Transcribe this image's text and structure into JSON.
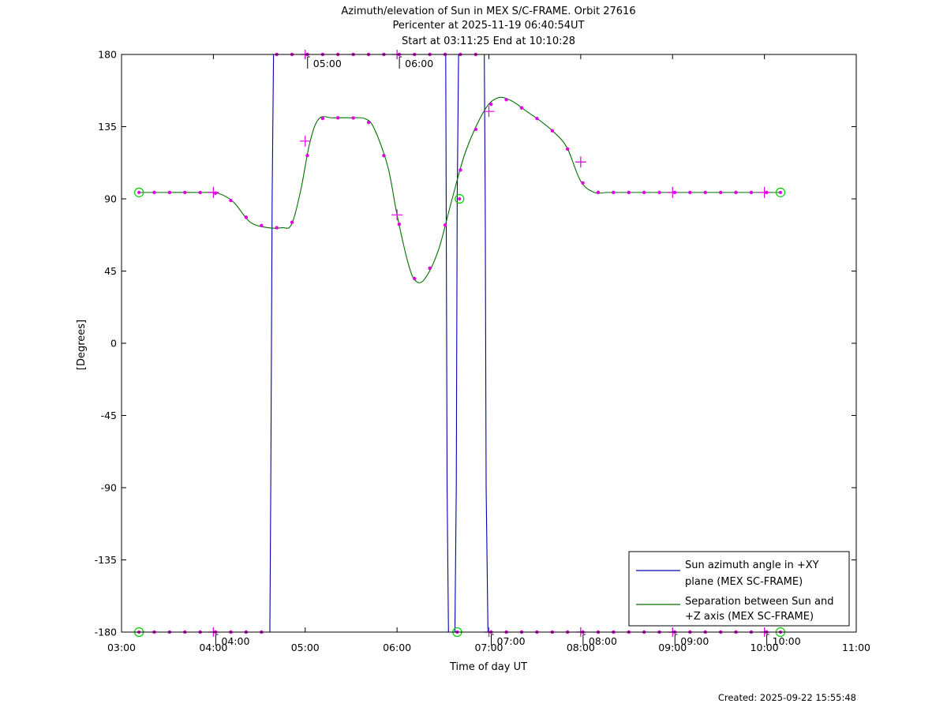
{
  "title_lines": [
    "Azimuth/elevation of Sun in MEX S/C-FRAME.  Orbit 27616",
    "Pericenter at 2025-11-19 06:40:54UT",
    "Start at 03:11:25 End at 10:10:28"
  ],
  "created": "Created: 2025-09-22 15:55:48",
  "colors": {
    "azimuth": "#0000b0",
    "separation": "#007000",
    "marker": "#e000e0",
    "endpoint": "#00cc00"
  },
  "chart_data": {
    "type": "line",
    "xlabel": "Time of day UT",
    "ylabel": "[Degrees]",
    "xlim": [
      3,
      11
    ],
    "ylim": [
      -180,
      180
    ],
    "x_ticks": [
      3,
      4,
      5,
      6,
      7,
      8,
      9,
      10,
      11
    ],
    "x_tick_labels": [
      "03:00",
      "04:00",
      "05:00",
      "06:00",
      "07:00",
      "08:00",
      "09:00",
      "10:00",
      "11:00"
    ],
    "y_ticks": [
      180,
      135,
      90,
      45,
      0,
      -45,
      -90,
      -135,
      -180
    ],
    "y_tick_labels": [
      "180",
      "135",
      "90",
      "45",
      "0",
      "-45",
      "-90",
      "-135",
      "-180"
    ],
    "grid": false,
    "legend_position": "bottom-right",
    "series": [
      {
        "name": "Sun azimuth angle in +XY plane (MEX SC-FRAME)",
        "legend_lines": [
          "Sun azimuth angle in +XY",
          "plane (MEX SC-FRAME)"
        ],
        "color": "#0000b0",
        "x": [
          3.19,
          4.615,
          4.625,
          4.64,
          4.655,
          6.53,
          6.535,
          6.545,
          6.56,
          6.63,
          6.645,
          6.655,
          6.67,
          6.95,
          6.96,
          6.97,
          6.99,
          10.175
        ],
        "y": [
          -180,
          -180,
          -90,
          90,
          180,
          180,
          90,
          -90,
          -180,
          -180,
          -90,
          90,
          180,
          180,
          90,
          -90,
          -180,
          -180
        ]
      },
      {
        "name": "Separation between Sun and +Z axis (MEX SC-FRAME)",
        "legend_lines": [
          "Separation between Sun and",
          "+Z axis (MEX SC-FRAME)"
        ],
        "color": "#007000",
        "x": [
          3.19,
          3.5,
          3.85,
          4.05,
          4.22,
          4.4,
          4.6,
          4.75,
          4.85,
          4.95,
          5.05,
          5.15,
          5.3,
          5.5,
          5.65,
          5.75,
          5.9,
          6.0,
          6.12,
          6.2,
          6.3,
          6.45,
          6.6,
          6.75,
          6.95,
          7.1,
          7.25,
          7.4,
          7.55,
          7.7,
          7.85,
          8.0,
          8.15,
          8.3,
          8.6,
          9.0,
          9.5,
          10.175
        ],
        "y": [
          94,
          94,
          94,
          93.5,
          88,
          75.5,
          72,
          72,
          74,
          95,
          125,
          140,
          140.5,
          140.5,
          140,
          134,
          110,
          80,
          50,
          39,
          40,
          58,
          90,
          120,
          145,
          153,
          151,
          145,
          139,
          132,
          122,
          101,
          94,
          94,
          94,
          94,
          94,
          94
        ]
      }
    ],
    "hourly_markers_separation": {
      "x": [
        4.0,
        5.0,
        6.0,
        7.0,
        8.0,
        9.0,
        10.0
      ],
      "y": [
        94,
        126,
        80,
        144.5,
        113,
        94,
        94
      ]
    },
    "event_markers": [
      {
        "label": "05:00",
        "x": 5.0,
        "y": 180
      },
      {
        "label": "06:00",
        "x": 6.0,
        "y": 180
      },
      {
        "label": "04:00",
        "x": 4.0,
        "y": -180
      },
      {
        "label": "07:00",
        "x": 7.0,
        "y": -180
      },
      {
        "label": "08:00",
        "x": 8.0,
        "y": -180
      },
      {
        "label": "09:00",
        "x": 9.0,
        "y": -180
      },
      {
        "label": "10:00",
        "x": 10.0,
        "y": -180
      }
    ],
    "endpoints": [
      {
        "x": 3.19,
        "y": 94
      },
      {
        "x": 10.175,
        "y": 94
      },
      {
        "x": 3.19,
        "y": -180
      },
      {
        "x": 6.655,
        "y": -180
      },
      {
        "x": 6.68,
        "y": 90
      },
      {
        "x": 10.175,
        "y": -180
      }
    ]
  }
}
